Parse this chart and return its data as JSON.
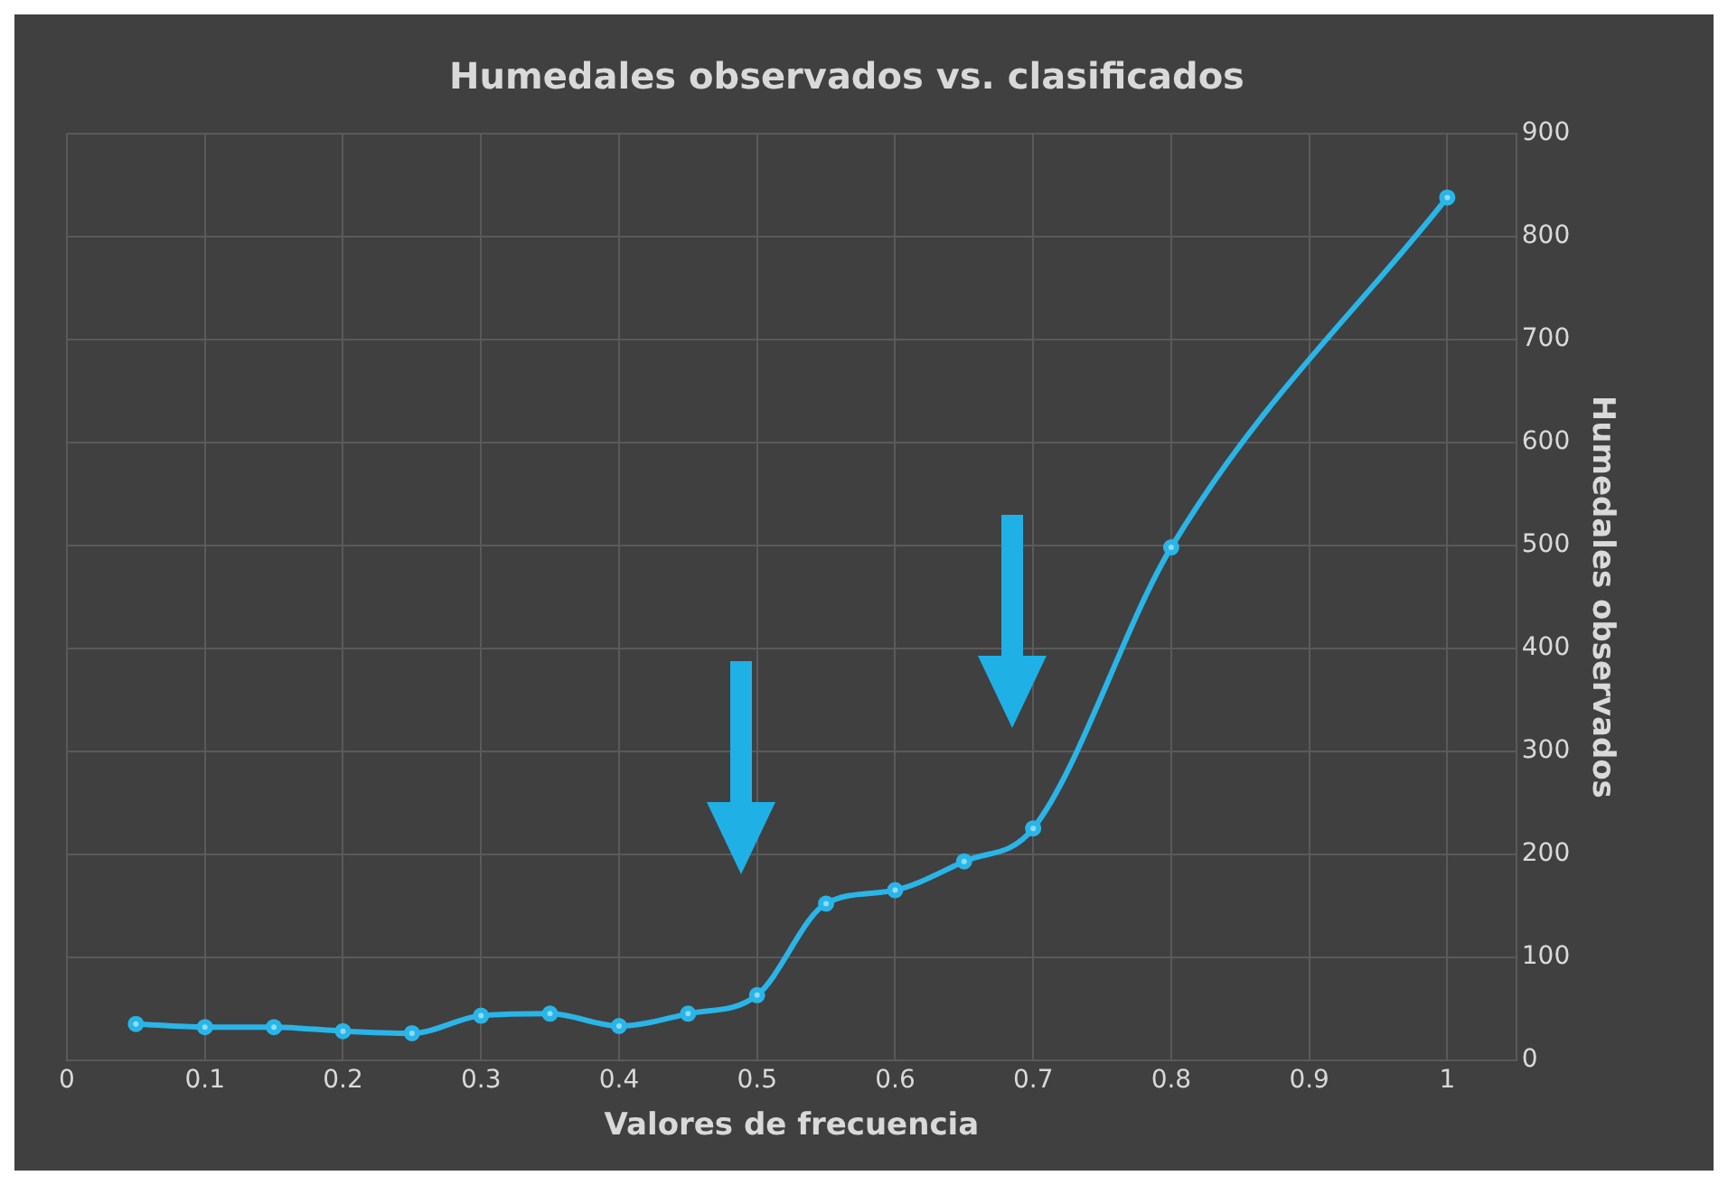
{
  "chart_data": {
    "type": "line",
    "title": "Humedales observados vs. clasificados",
    "xlabel": "Valores de frecuencia",
    "y2label": "Humedales observados",
    "x": [
      0.05,
      0.1,
      0.15,
      0.2,
      0.25,
      0.3,
      0.35,
      0.4,
      0.45,
      0.5,
      0.55,
      0.6,
      0.65,
      0.7,
      0.8,
      1
    ],
    "series": [
      {
        "color": "#29b5e8",
        "axis": "y2",
        "values": [
          35,
          32,
          32,
          28,
          26,
          43,
          45,
          33,
          45,
          63,
          152,
          165,
          193,
          225,
          498,
          838
        ]
      }
    ],
    "xlim": [
      0,
      1.05
    ],
    "xticks": [
      0,
      0.1,
      0.2,
      0.3,
      0.4,
      0.5,
      0.6,
      0.7,
      0.8,
      0.9,
      1
    ],
    "y2lim": [
      0,
      900
    ],
    "y2ticks": [
      0,
      100,
      200,
      300,
      400,
      500,
      600,
      700,
      800,
      900
    ],
    "grid": true,
    "legend": false,
    "marker": "circle",
    "line_style": "solid"
  }
}
